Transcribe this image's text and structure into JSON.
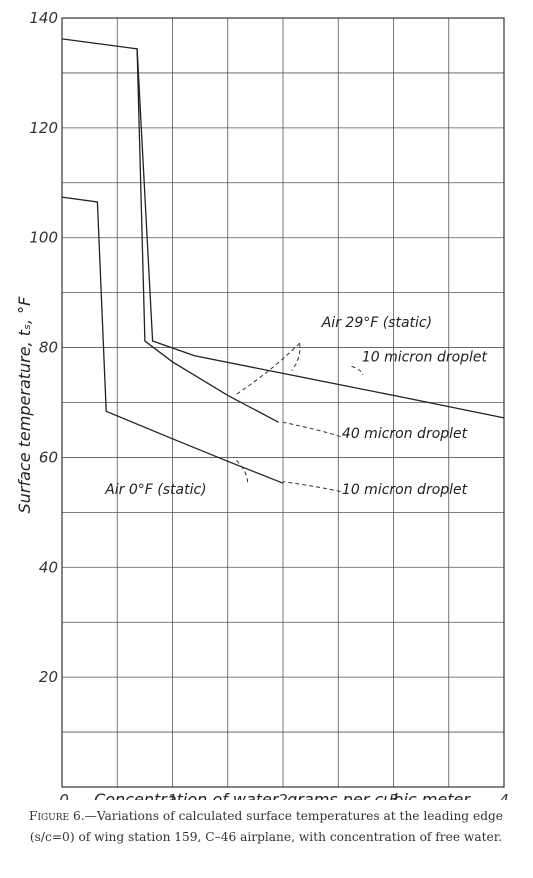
{
  "chart_data": {
    "type": "line",
    "xlabel": "Concentration of water, grams per cubic meter",
    "ylabel": "Surface temperature, tₛ, °F",
    "xlim": [
      0,
      4
    ],
    "ylim": [
      0,
      140
    ],
    "x_ticks": [
      "0",
      "1",
      "2",
      "3",
      "4"
    ],
    "y_ticks": [
      "20",
      "40",
      "60",
      "80",
      "100",
      "120",
      "140"
    ],
    "grid": true,
    "series": [
      {
        "name": "Air 29°F (static), 10 micron droplet",
        "x": [
          0,
          0.68,
          0.82,
          1.2,
          2.0,
          3.0,
          4.0
        ],
        "y": [
          136.2,
          134.4,
          81.2,
          78.5,
          75.3,
          71.3,
          67.2
        ]
      },
      {
        "name": "Air 29°F (static), 40 micron droplet",
        "x": [
          0.68,
          0.75,
          1.0,
          1.5,
          1.96
        ],
        "y": [
          134.4,
          81.2,
          77.4,
          71.3,
          66.4
        ]
      },
      {
        "name": "Air 0°F (static), 10 micron droplet",
        "x": [
          0,
          0.32,
          0.4,
          1.0,
          1.5,
          2.0
        ],
        "y": [
          107.4,
          106.5,
          68.4,
          63.4,
          59.3,
          55.3
        ]
      }
    ],
    "annotations": [
      {
        "text": "Air 29°F (static)",
        "x": 2.85,
        "y": 83.7
      },
      {
        "text": "10 micron droplet",
        "x": 3.28,
        "y": 77.5
      },
      {
        "text": "40 micron droplet",
        "x": 3.1,
        "y": 63.5
      },
      {
        "text": "Air 0°F (static)",
        "x": 0.85,
        "y": 53.3
      },
      {
        "text": "10 micron droplet",
        "x": 3.1,
        "y": 53.3
      }
    ]
  },
  "caption": {
    "label": "Figure 6.",
    "text": "—Variations of calculated surface temperatures at the leading edge (s/c=0) of wing station 159, C–46 airplane, with concentration of free water."
  }
}
